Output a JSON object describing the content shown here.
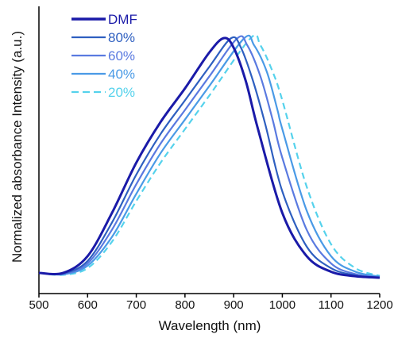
{
  "chart_data": {
    "type": "line",
    "xlabel": "Wavelength (nm)",
    "ylabel": "Normalized absorbance Intensity  (a.u.)",
    "xlim": [
      500,
      1200
    ],
    "ylim": [
      0,
      1
    ],
    "x_ticks": [
      "500",
      "600",
      "700",
      "800",
      "900",
      "1000",
      "1100",
      "1200"
    ],
    "y_ticks": [],
    "grid": false,
    "legend_position": "top-left",
    "series": [
      {
        "name": "DMF",
        "color": "#1a1aa8",
        "dash": "solid",
        "x": [
          500,
          550,
          600,
          650,
          700,
          750,
          800,
          850,
          880,
          900,
          925,
          950,
          1000,
          1050,
          1100,
          1150,
          1200
        ],
        "y": [
          0.02,
          0.02,
          0.09,
          0.27,
          0.48,
          0.65,
          0.79,
          0.94,
          1.0,
          0.96,
          0.82,
          0.62,
          0.27,
          0.09,
          0.025,
          0.006,
          0.0
        ]
      },
      {
        "name": "80%",
        "color": "#2e5fc0",
        "dash": "solid",
        "x": [
          500,
          550,
          600,
          650,
          700,
          750,
          800,
          850,
          895,
          915,
          940,
          965,
          1000,
          1050,
          1100,
          1150,
          1200
        ],
        "y": [
          0.02,
          0.018,
          0.07,
          0.23,
          0.43,
          0.6,
          0.74,
          0.88,
          1.0,
          0.96,
          0.82,
          0.64,
          0.36,
          0.13,
          0.04,
          0.01,
          0.0
        ]
      },
      {
        "name": "60%",
        "color": "#5a7ae0",
        "dash": "solid",
        "x": [
          500,
          550,
          600,
          650,
          700,
          750,
          800,
          850,
          908,
          928,
          955,
          980,
          1000,
          1050,
          1100,
          1150,
          1200
        ],
        "y": [
          0.02,
          0.016,
          0.06,
          0.2,
          0.39,
          0.56,
          0.7,
          0.84,
          1.0,
          0.97,
          0.84,
          0.66,
          0.5,
          0.2,
          0.06,
          0.015,
          0.0
        ]
      },
      {
        "name": "40%",
        "color": "#4a9ae6",
        "dash": "solid",
        "x": [
          500,
          550,
          600,
          650,
          700,
          750,
          800,
          850,
          922,
          942,
          968,
          990,
          1000,
          1050,
          1100,
          1150,
          1200
        ],
        "y": [
          0.02,
          0.014,
          0.05,
          0.17,
          0.35,
          0.52,
          0.66,
          0.8,
          1.0,
          0.97,
          0.86,
          0.7,
          0.62,
          0.28,
          0.09,
          0.025,
          0.005
        ]
      },
      {
        "name": "20%",
        "color": "#55d2ec",
        "dash": "dashed",
        "x": [
          500,
          550,
          600,
          650,
          700,
          750,
          800,
          850,
          935,
          955,
          980,
          1000,
          1050,
          1100,
          1150,
          1200
        ],
        "y": [
          0.02,
          0.012,
          0.04,
          0.15,
          0.32,
          0.48,
          0.62,
          0.76,
          1.0,
          0.97,
          0.86,
          0.74,
          0.38,
          0.14,
          0.04,
          0.008
        ]
      }
    ]
  }
}
